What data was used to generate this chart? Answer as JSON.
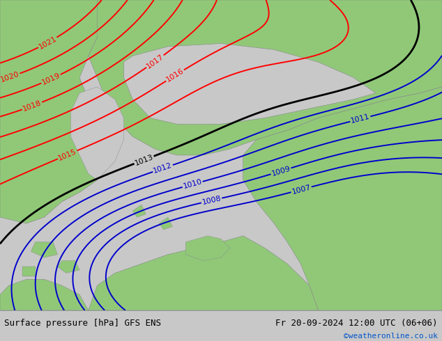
{
  "title_left": "Surface pressure [hPa] GFS ENS",
  "title_right": "Fr 20-09-2024 12:00 UTC (06+06)",
  "credit": "©weatheronline.co.uk",
  "bg_color": "#c8c8c8",
  "land_color": "#90c878",
  "sea_color": "#c8c8c8",
  "bottom_bar_color": "#c8c8c8",
  "red_contours": [
    1015,
    1016,
    1017,
    1018,
    1019,
    1020,
    1021
  ],
  "black_contours": [
    1013
  ],
  "blue_contours": [
    1007,
    1008,
    1009,
    1010,
    1011,
    1012
  ],
  "contour_color_red": "#ff0000",
  "contour_color_black": "#000000",
  "contour_color_blue": "#0000cc",
  "font_size_label": 8,
  "font_size_bottom": 9,
  "font_size_credit": 8,
  "lw_red": 1.4,
  "lw_black": 2.0,
  "lw_blue": 1.4
}
